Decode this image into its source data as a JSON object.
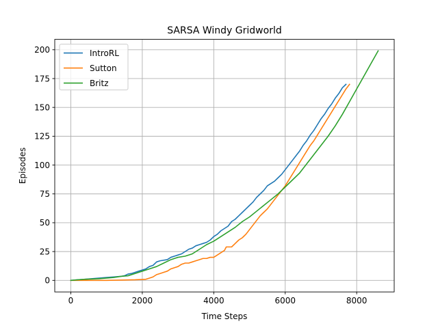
{
  "chart_data": {
    "type": "line",
    "title": "SARSA Windy Gridworld",
    "xlabel": "Time Steps",
    "ylabel": "Episodes",
    "xlim": [
      -450,
      9050
    ],
    "ylim": [
      -10,
      209
    ],
    "xticks": [
      0,
      2000,
      4000,
      6000,
      8000
    ],
    "yticks": [
      0,
      25,
      50,
      75,
      100,
      125,
      150,
      175,
      200
    ],
    "grid": true,
    "legend_position": "top-left",
    "series": [
      {
        "name": "IntroRL",
        "color": "#1f77b4",
        "points": [
          [
            0,
            0
          ],
          [
            200,
            0.5
          ],
          [
            400,
            1
          ],
          [
            600,
            1.5
          ],
          [
            800,
            2
          ],
          [
            1000,
            2.5
          ],
          [
            1200,
            3
          ],
          [
            1400,
            3.5
          ],
          [
            1500,
            4
          ],
          [
            1600,
            5.5
          ],
          [
            1700,
            6
          ],
          [
            1800,
            7
          ],
          [
            1900,
            8
          ],
          [
            2000,
            9
          ],
          [
            2100,
            10
          ],
          [
            2200,
            12
          ],
          [
            2300,
            13
          ],
          [
            2400,
            16
          ],
          [
            2500,
            17
          ],
          [
            2700,
            18
          ],
          [
            2800,
            20
          ],
          [
            3000,
            22
          ],
          [
            3100,
            23
          ],
          [
            3200,
            25
          ],
          [
            3300,
            27
          ],
          [
            3400,
            28
          ],
          [
            3500,
            30
          ],
          [
            3600,
            31
          ],
          [
            3700,
            32
          ],
          [
            3800,
            33
          ],
          [
            3900,
            35
          ],
          [
            4000,
            38
          ],
          [
            4100,
            40
          ],
          [
            4200,
            43
          ],
          [
            4300,
            45
          ],
          [
            4400,
            47
          ],
          [
            4500,
            51
          ],
          [
            4600,
            53
          ],
          [
            4700,
            56
          ],
          [
            4800,
            59
          ],
          [
            4900,
            62
          ],
          [
            5000,
            65
          ],
          [
            5100,
            68
          ],
          [
            5200,
            72
          ],
          [
            5300,
            75
          ],
          [
            5400,
            78
          ],
          [
            5500,
            82
          ],
          [
            5600,
            84
          ],
          [
            5700,
            86
          ],
          [
            5800,
            89
          ],
          [
            5900,
            92
          ],
          [
            6000,
            96
          ],
          [
            6100,
            100
          ],
          [
            6200,
            104
          ],
          [
            6300,
            108
          ],
          [
            6400,
            112
          ],
          [
            6500,
            117
          ],
          [
            6600,
            121
          ],
          [
            6700,
            126
          ],
          [
            6800,
            130
          ],
          [
            6900,
            135
          ],
          [
            7000,
            140
          ],
          [
            7100,
            144
          ],
          [
            7200,
            149
          ],
          [
            7300,
            153
          ],
          [
            7400,
            158
          ],
          [
            7500,
            162
          ],
          [
            7600,
            167
          ],
          [
            7700,
            170
          ]
        ]
      },
      {
        "name": "Sutton",
        "color": "#ff7f0e",
        "points": [
          [
            0,
            0
          ],
          [
            500,
            0
          ],
          [
            1000,
            0
          ],
          [
            1500,
            0.3
          ],
          [
            1800,
            0.5
          ],
          [
            2100,
            1
          ],
          [
            2200,
            2
          ],
          [
            2300,
            3
          ],
          [
            2400,
            5
          ],
          [
            2500,
            6
          ],
          [
            2600,
            7
          ],
          [
            2700,
            8
          ],
          [
            2800,
            10
          ],
          [
            2900,
            11
          ],
          [
            3000,
            12
          ],
          [
            3100,
            14
          ],
          [
            3200,
            15
          ],
          [
            3300,
            15
          ],
          [
            3400,
            16
          ],
          [
            3500,
            17
          ],
          [
            3600,
            18
          ],
          [
            3700,
            19
          ],
          [
            3800,
            19
          ],
          [
            3900,
            20
          ],
          [
            4000,
            20
          ],
          [
            4100,
            22
          ],
          [
            4200,
            24
          ],
          [
            4300,
            26
          ],
          [
            4350,
            29
          ],
          [
            4500,
            29
          ],
          [
            4600,
            32
          ],
          [
            4700,
            35
          ],
          [
            4800,
            37
          ],
          [
            4900,
            40
          ],
          [
            5000,
            44
          ],
          [
            5100,
            48
          ],
          [
            5200,
            52
          ],
          [
            5300,
            56
          ],
          [
            5400,
            59
          ],
          [
            5500,
            62
          ],
          [
            5600,
            66
          ],
          [
            5700,
            70
          ],
          [
            5800,
            74
          ],
          [
            5900,
            78
          ],
          [
            6000,
            82
          ],
          [
            6100,
            87
          ],
          [
            6200,
            92
          ],
          [
            6300,
            97
          ],
          [
            6400,
            102
          ],
          [
            6500,
            107
          ],
          [
            6600,
            112
          ],
          [
            6700,
            117
          ],
          [
            6800,
            121
          ],
          [
            6900,
            126
          ],
          [
            7000,
            131
          ],
          [
            7100,
            136
          ],
          [
            7200,
            141
          ],
          [
            7300,
            146
          ],
          [
            7400,
            151
          ],
          [
            7500,
            156
          ],
          [
            7600,
            161
          ],
          [
            7700,
            166
          ],
          [
            7800,
            170
          ]
        ]
      },
      {
        "name": "Britz",
        "color": "#2ca02c",
        "points": [
          [
            0,
            0
          ],
          [
            200,
            0.5
          ],
          [
            400,
            1
          ],
          [
            600,
            1.2
          ],
          [
            800,
            1.5
          ],
          [
            1000,
            2
          ],
          [
            1200,
            2.5
          ],
          [
            1400,
            3.5
          ],
          [
            1600,
            4
          ],
          [
            1800,
            6
          ],
          [
            2000,
            8
          ],
          [
            2200,
            10
          ],
          [
            2400,
            12
          ],
          [
            2600,
            15
          ],
          [
            2800,
            18
          ],
          [
            3000,
            20
          ],
          [
            3200,
            21
          ],
          [
            3400,
            23
          ],
          [
            3600,
            27
          ],
          [
            3800,
            31
          ],
          [
            4000,
            34
          ],
          [
            4200,
            38
          ],
          [
            4400,
            42
          ],
          [
            4600,
            46
          ],
          [
            4800,
            51
          ],
          [
            5000,
            55
          ],
          [
            5200,
            60
          ],
          [
            5400,
            65
          ],
          [
            5600,
            70
          ],
          [
            5800,
            75
          ],
          [
            6000,
            81
          ],
          [
            6200,
            87
          ],
          [
            6400,
            93
          ],
          [
            6600,
            101
          ],
          [
            6800,
            109
          ],
          [
            7000,
            117
          ],
          [
            7200,
            125
          ],
          [
            7400,
            134
          ],
          [
            7600,
            144
          ],
          [
            7800,
            155
          ],
          [
            8000,
            166
          ],
          [
            8200,
            177
          ],
          [
            8400,
            188
          ],
          [
            8600,
            199
          ]
        ]
      }
    ]
  }
}
